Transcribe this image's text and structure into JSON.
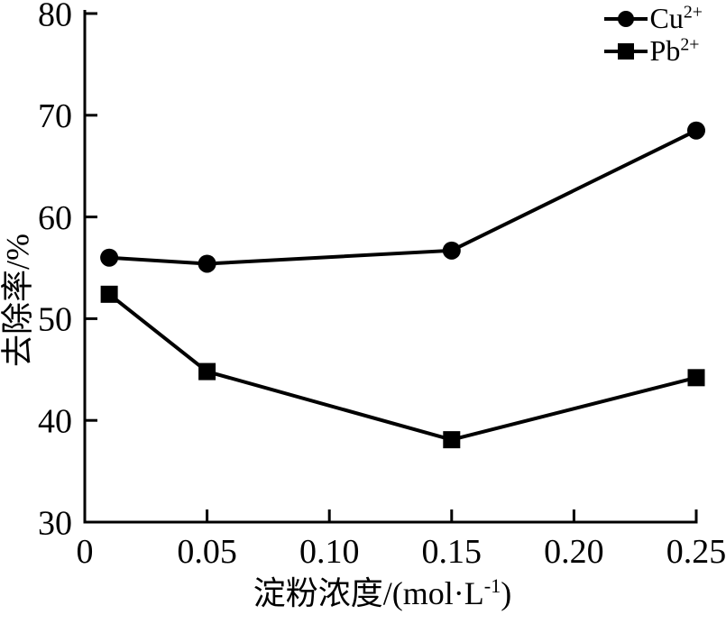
{
  "chart_data": {
    "type": "line",
    "title": "",
    "xlabel": {
      "base": "淀粉浓度/(mol·L",
      "sup": "-1",
      "suffix": ")"
    },
    "ylabel": "去除率/%",
    "xlim": [
      0,
      0.25
    ],
    "ylim": [
      30,
      80
    ],
    "grid": false,
    "legend_position": "top-right",
    "x_ticks": [
      {
        "v": 0,
        "label": "0"
      },
      {
        "v": 0.05,
        "label": "0.05"
      },
      {
        "v": 0.1,
        "label": "0.10"
      },
      {
        "v": 0.15,
        "label": "0.15"
      },
      {
        "v": 0.2,
        "label": "0.20"
      },
      {
        "v": 0.25,
        "label": "0.25"
      }
    ],
    "y_ticks": [
      {
        "v": 30,
        "label": "30"
      },
      {
        "v": 40,
        "label": "40"
      },
      {
        "v": 50,
        "label": "50"
      },
      {
        "v": 60,
        "label": "60"
      },
      {
        "v": 70,
        "label": "70"
      },
      {
        "v": 80,
        "label": "80"
      }
    ],
    "series": [
      {
        "name": "Cu2+",
        "label_base": "Cu",
        "label_sup": "2+",
        "marker": "circle",
        "color": "#000000",
        "x": [
          0.01,
          0.05,
          0.15,
          0.25
        ],
        "y": [
          56.0,
          55.4,
          56.7,
          68.5
        ]
      },
      {
        "name": "Pb2+",
        "label_base": "Pb",
        "label_sup": "2+",
        "marker": "square",
        "color": "#000000",
        "x": [
          0.01,
          0.05,
          0.15,
          0.25
        ],
        "y": [
          52.4,
          44.8,
          38.1,
          44.2
        ]
      }
    ],
    "colors": {
      "axis": "#000000",
      "text": "#000000",
      "background": "#ffffff"
    }
  }
}
